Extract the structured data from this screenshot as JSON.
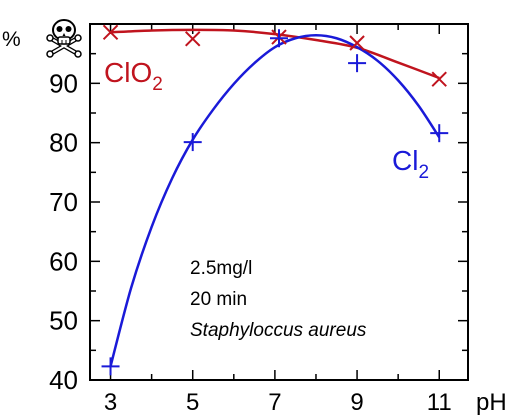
{
  "chart_data": {
    "type": "scatter",
    "ylabel": "%",
    "xlabel": "pH",
    "xlim": [
      2.5,
      11.7
    ],
    "ylim": [
      40,
      100
    ],
    "x_ticks": [
      3,
      5,
      7,
      9,
      11
    ],
    "x_tick_labels": [
      "3",
      "5",
      "7",
      "9",
      "11"
    ],
    "y_ticks": [
      40,
      50,
      60,
      70,
      80,
      90
    ],
    "y_tick_labels": [
      "40",
      "50",
      "60",
      "70",
      "80",
      "90"
    ],
    "grid": false,
    "series": [
      {
        "name": "ClO2",
        "label_main": "ClO",
        "label_sub": "2",
        "marker": "x",
        "color": "#c0141e",
        "points": [
          {
            "x": 3,
            "y": 98.6
          },
          {
            "x": 5,
            "y": 97.5
          },
          {
            "x": 7.1,
            "y": 97.8
          },
          {
            "x": 9,
            "y": 96.8
          },
          {
            "x": 11,
            "y": 90.7
          }
        ],
        "fit": [
          {
            "x": 3,
            "y": 98.6
          },
          {
            "x": 4,
            "y": 98.9
          },
          {
            "x": 5,
            "y": 99.0
          },
          {
            "x": 6,
            "y": 98.9
          },
          {
            "x": 7,
            "y": 98.3
          },
          {
            "x": 8,
            "y": 97.3
          },
          {
            "x": 9,
            "y": 96.0
          },
          {
            "x": 10,
            "y": 93.5
          },
          {
            "x": 11,
            "y": 90.9
          }
        ]
      },
      {
        "name": "Cl2",
        "label_main": "Cl",
        "label_sub": "2",
        "marker": "+",
        "color": "#1a1ad8",
        "points": [
          {
            "x": 3,
            "y": 42.3
          },
          {
            "x": 5,
            "y": 80.1
          },
          {
            "x": 7.1,
            "y": 97.6
          },
          {
            "x": 9,
            "y": 93.4
          },
          {
            "x": 11,
            "y": 81.6
          }
        ],
        "fit": [
          {
            "x": 3,
            "y": 42.3
          },
          {
            "x": 3.5,
            "y": 55.5
          },
          {
            "x": 4,
            "y": 65.8
          },
          {
            "x": 4.5,
            "y": 74.0
          },
          {
            "x": 5,
            "y": 80.5
          },
          {
            "x": 5.5,
            "y": 85.6
          },
          {
            "x": 6,
            "y": 89.9
          },
          {
            "x": 6.5,
            "y": 93.4
          },
          {
            "x": 7,
            "y": 96.1
          },
          {
            "x": 7.5,
            "y": 97.6
          },
          {
            "x": 8,
            "y": 98.1
          },
          {
            "x": 8.5,
            "y": 97.6
          },
          {
            "x": 9,
            "y": 96.1
          },
          {
            "x": 9.5,
            "y": 93.8
          },
          {
            "x": 10,
            "y": 90.5
          },
          {
            "x": 10.5,
            "y": 86.2
          },
          {
            "x": 11,
            "y": 80.9
          }
        ]
      }
    ],
    "annotations": [
      "2.5mg/l",
      "20 min",
      "Staphyloccus aureus"
    ],
    "hazard_icon": "skull-crossbones-icon"
  }
}
